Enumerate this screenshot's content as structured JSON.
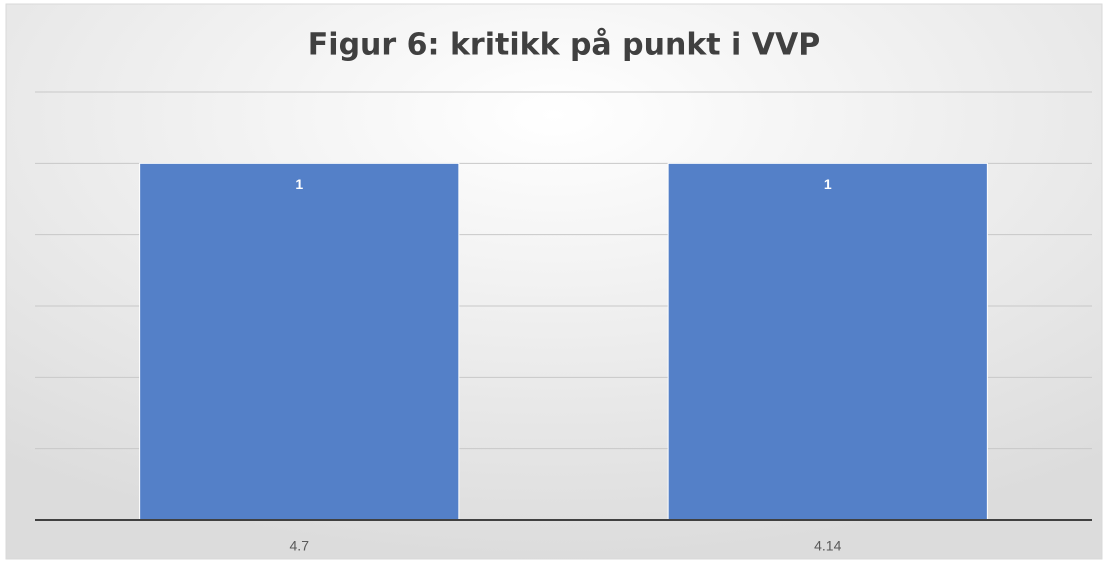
{
  "chart_data": {
    "type": "bar",
    "title": "Figur 6: kritikk på punkt i VVP",
    "categories": [
      "4.7",
      "4.14"
    ],
    "values": [
      1,
      1
    ],
    "color": "#5480c8",
    "ylim": [
      0,
      1.2
    ],
    "yticks": [
      0,
      0.2,
      0.4,
      0.6,
      0.8,
      1,
      1.2
    ],
    "grid": true
  }
}
